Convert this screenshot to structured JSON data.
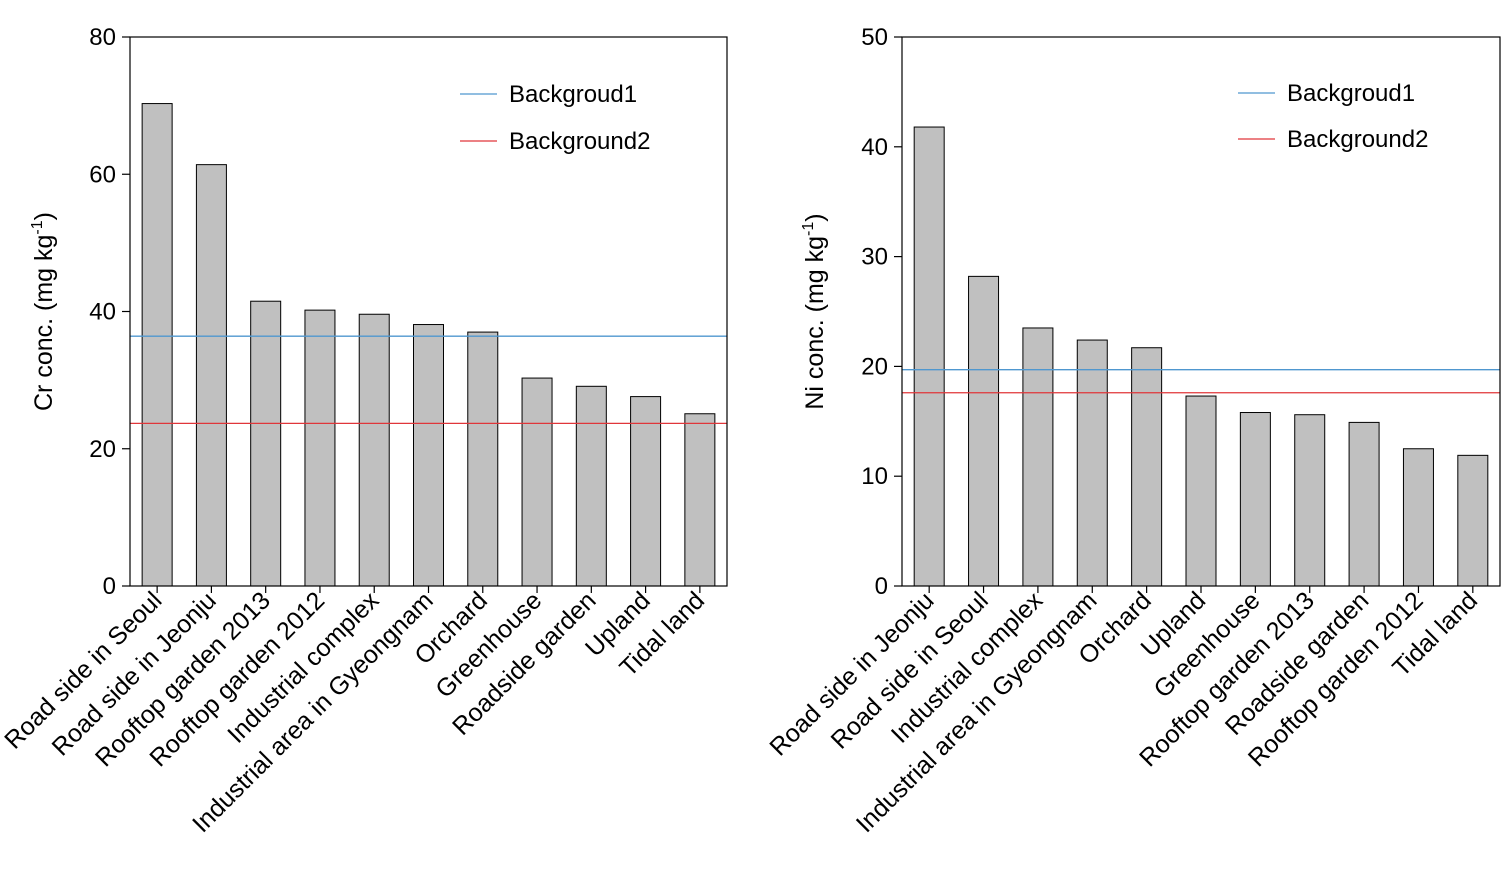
{
  "chart_data": [
    {
      "type": "bar",
      "title": "",
      "ylabel": {
        "main": "Cr conc.  (mg kg",
        "sup": "-1",
        "end": ")"
      },
      "ylim": [
        0,
        80
      ],
      "yticks": [
        0,
        20,
        40,
        60,
        80
      ],
      "categories": [
        "Road side in Seoul",
        "Road side in Jeonju",
        "Rooftop garden 2013",
        "Rooftop garden 2012",
        "Industrial complex",
        "Industrial area in Gyeongnam",
        "Orchard",
        "Greenhouse",
        "Roadside garden",
        "Upland",
        "Tidal land"
      ],
      "values": [
        70.3,
        61.4,
        41.5,
        40.2,
        39.6,
        38.1,
        37.0,
        30.3,
        29.1,
        27.6,
        25.1
      ],
      "bar_color": "#c0c0c0",
      "reference_lines": [
        {
          "name": "Backgroud1",
          "value": 36.4,
          "color": "#4f97cf"
        },
        {
          "name": "Background2",
          "value": 23.7,
          "color": "#e0363a"
        }
      ],
      "legend": "top-right",
      "grid": false
    },
    {
      "type": "bar",
      "title": "",
      "ylabel": {
        "main": "Ni conc.  (mg kg",
        "sup": "-1",
        "end": ")"
      },
      "ylim": [
        0,
        50
      ],
      "yticks": [
        0,
        10,
        20,
        30,
        40,
        50
      ],
      "categories": [
        "Road side in Jeonju",
        "Road side in Seoul",
        "Industrial complex",
        "Industrial area in Gyeongnam",
        "Orchard",
        "Upland",
        "Greenhouse",
        "Rooftop garden 2013",
        "Roadside garden",
        "Rooftop garden 2012",
        "Tidal land"
      ],
      "values": [
        41.8,
        28.2,
        23.5,
        22.4,
        21.7,
        17.3,
        15.8,
        15.6,
        14.9,
        12.5,
        11.9
      ],
      "bar_color": "#c0c0c0",
      "reference_lines": [
        {
          "name": "Backgroud1",
          "value": 19.7,
          "color": "#4f97cf"
        },
        {
          "name": "Background2",
          "value": 17.6,
          "color": "#e0363a"
        }
      ],
      "legend": "top-right",
      "grid": false
    }
  ]
}
